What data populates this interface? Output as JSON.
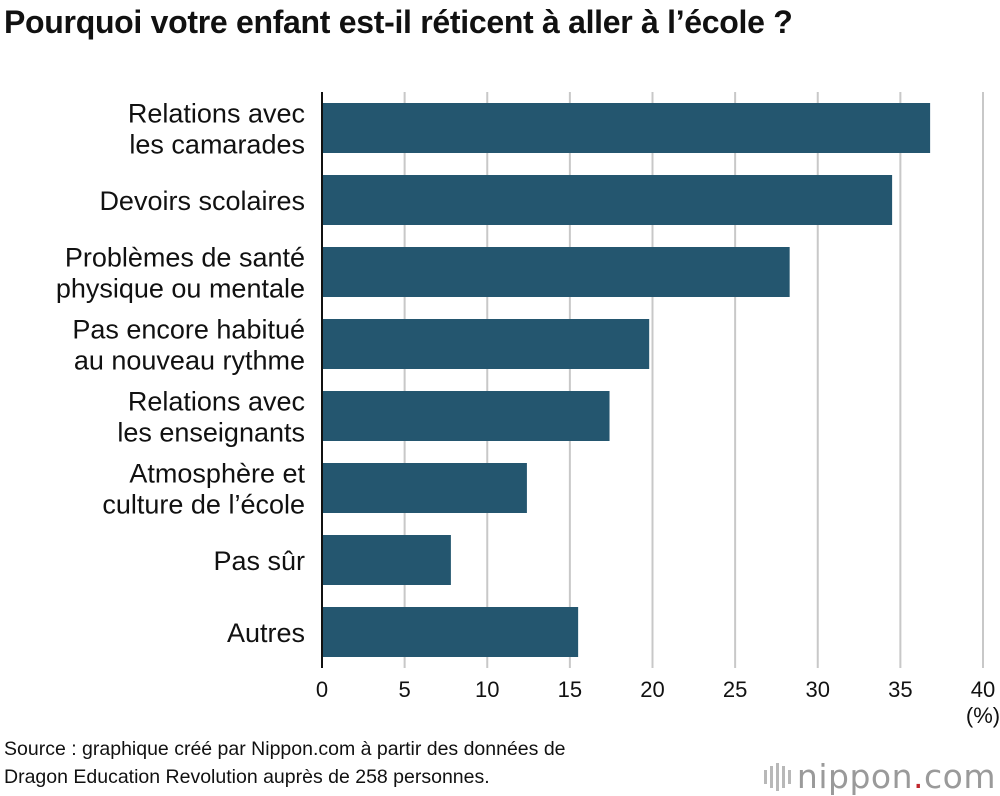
{
  "title": "Pourquoi votre enfant est-il réticent à aller à l’école ?",
  "chart_data": {
    "type": "bar",
    "orientation": "horizontal",
    "title": "Pourquoi votre enfant est-il réticent à aller à l’école ?",
    "categories": [
      [
        "Relations avec",
        "les camarades"
      ],
      [
        "Devoirs scolaires"
      ],
      [
        "Problèmes de santé",
        "physique ou mentale"
      ],
      [
        "Pas encore habitué",
        "au nouveau rythme"
      ],
      [
        "Relations avec",
        "les enseignants"
      ],
      [
        "Atmosphère et",
        "culture de l’école"
      ],
      [
        "Pas sûr"
      ],
      [
        "Autres"
      ]
    ],
    "values": [
      36.8,
      34.5,
      28.3,
      19.8,
      17.4,
      12.4,
      7.8,
      15.5
    ],
    "xlim": [
      0,
      40
    ],
    "xticks": [
      "0",
      "5",
      "10",
      "15",
      "20",
      "25",
      "30",
      "35",
      "40"
    ],
    "xunit": "(%)",
    "xlabel": "",
    "ylabel": "",
    "grid": true,
    "bar_color": "#24566f",
    "grid_color": "#c8c8c8"
  },
  "source": {
    "line1": "Source : graphique créé par Nippon.com à partir des données de",
    "line2": "Dragon Education Revolution auprès de 258 personnes."
  },
  "brand": {
    "name_main": "nippon",
    "name_dot": ".",
    "name_tld": "com",
    "accent_color": "#c0272d"
  }
}
